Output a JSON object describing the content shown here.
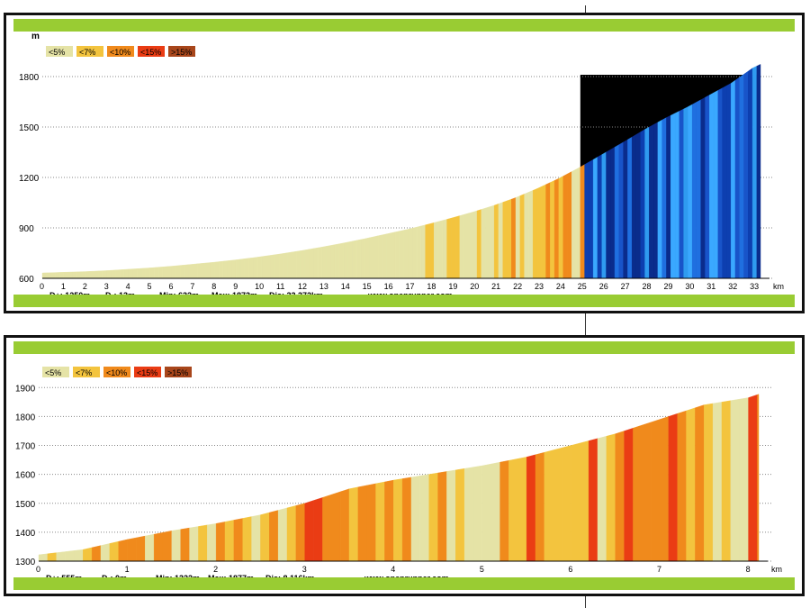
{
  "chart_data": [
    {
      "type": "area",
      "title": "",
      "ylabel": "m",
      "xlabel": "km",
      "ylim": [
        600,
        1950
      ],
      "xlim": [
        0,
        33.372
      ],
      "grid": true,
      "legend_placement": "top-left",
      "legend": [
        {
          "label": "<5%",
          "color": "#e5e3a6"
        },
        {
          "label": "<7%",
          "color": "#f3c43e"
        },
        {
          "label": "<10%",
          "color": "#f08a1c"
        },
        {
          "label": "<15%",
          "color": "#ea3c14"
        },
        {
          "label": ">15%",
          "color": "#a8461b"
        }
      ],
      "y_ticks": [
        600,
        900,
        1200,
        1500,
        1800
      ],
      "x_ticks": [
        "0",
        "1",
        "2",
        "3",
        "4",
        "5",
        "6",
        "7",
        "8",
        "9",
        "10",
        "11",
        "12",
        "13",
        "14",
        "15",
        "16",
        "17",
        "18",
        "19",
        "20",
        "21",
        "22",
        "23",
        "24",
        "25",
        "26",
        "27",
        "28",
        "29",
        "30",
        "31",
        "32",
        "33"
      ],
      "x": [
        0,
        1,
        2,
        3,
        4,
        5,
        6,
        7,
        8,
        9,
        10,
        11,
        12,
        13,
        14,
        15,
        16,
        17,
        18,
        19,
        20,
        21,
        22,
        23,
        24,
        25,
        26,
        27,
        28,
        29,
        30,
        31,
        32,
        33,
        33.372
      ],
      "y": [
        632,
        636,
        640,
        646,
        654,
        662,
        672,
        684,
        696,
        710,
        726,
        744,
        764,
        786,
        810,
        836,
        864,
        892,
        924,
        958,
        994,
        1034,
        1080,
        1134,
        1194,
        1262,
        1336,
        1410,
        1486,
        1556,
        1620,
        1690,
        1760,
        1850,
        1873
      ],
      "stats": {
        "dplus": "D+: 1250m",
        "dminus": "D-: 13m",
        "min": "Min: 632m",
        "max": "Max: 1873m",
        "dist": "Dis: 33.372km",
        "site": "www.openrunner.com"
      },
      "highlight_start_km": 25
    },
    {
      "type": "area",
      "title": "",
      "ylabel": "",
      "xlabel": "km",
      "ylim": [
        1300,
        1960
      ],
      "xlim": [
        0,
        8.116
      ],
      "grid": true,
      "legend_placement": "top-left",
      "legend": [
        {
          "label": "<5%",
          "color": "#e5e3a6"
        },
        {
          "label": "<7%",
          "color": "#f3c43e"
        },
        {
          "label": "<10%",
          "color": "#f08a1c"
        },
        {
          "label": "<15%",
          "color": "#ea3c14"
        },
        {
          "label": ">15%",
          "color": "#a8461b"
        }
      ],
      "y_ticks": [
        1300,
        1400,
        1500,
        1600,
        1700,
        1800,
        1900
      ],
      "x_ticks": [
        "0",
        "1",
        "2",
        "3",
        "4",
        "5",
        "6",
        "7",
        "8"
      ],
      "x": [
        0,
        0.5,
        1,
        1.5,
        2,
        2.5,
        3,
        3.5,
        4,
        4.5,
        5,
        5.5,
        6,
        6.5,
        7,
        7.5,
        8,
        8.116
      ],
      "y": [
        1322,
        1340,
        1375,
        1405,
        1430,
        1460,
        1500,
        1550,
        1580,
        1605,
        1630,
        1660,
        1700,
        1740,
        1790,
        1840,
        1865,
        1877
      ],
      "stats": {
        "dplus": "D+: 555m",
        "dminus": "D-: 0m",
        "min": "Min: 1322m",
        "max": "Max: 1877m",
        "dist": "Dis: 8.116km",
        "site": "www.openrunner.com"
      }
    }
  ]
}
